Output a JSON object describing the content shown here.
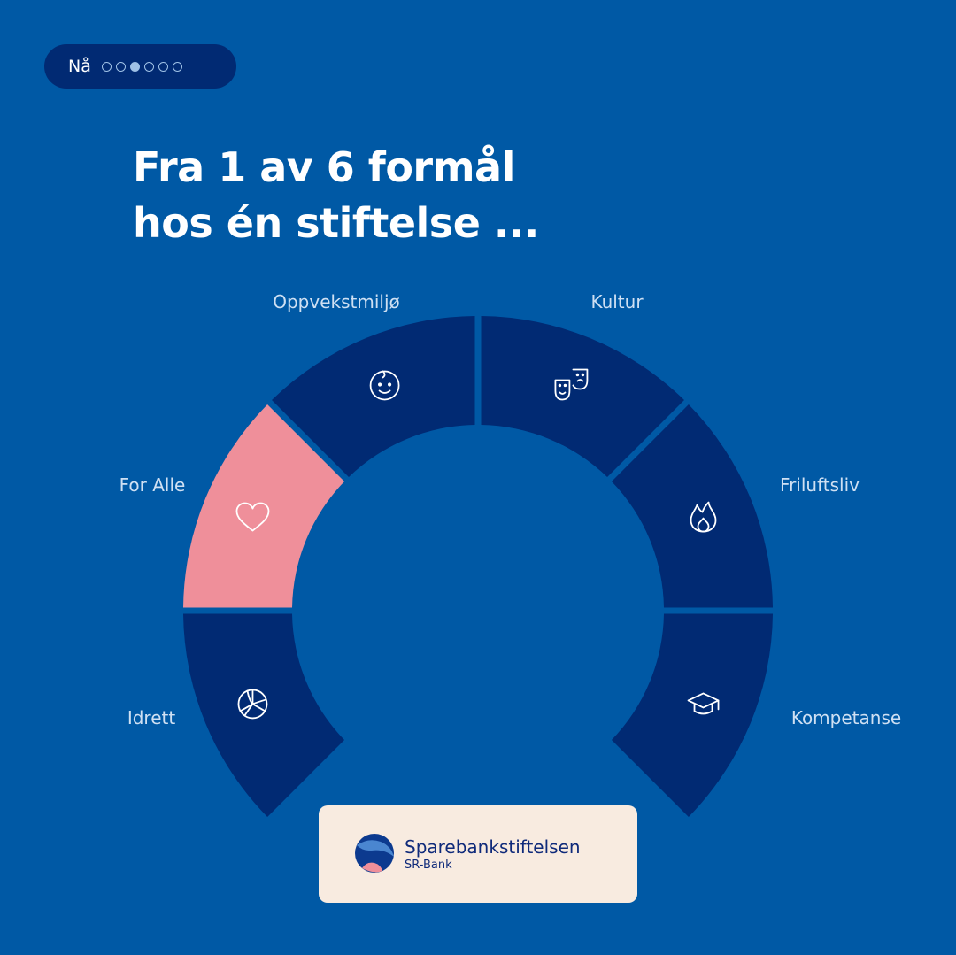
{
  "header": {
    "label": "Nå",
    "dots_total": 6,
    "dots_active_index": 2
  },
  "title": {
    "line1": "Fra 1 av 6 formål",
    "line2": "hos én stiftelse ..."
  },
  "segments": [
    {
      "label": "Idrett",
      "icon": "volleyball-icon",
      "highlighted": false
    },
    {
      "label": "For Alle",
      "icon": "heart-icon",
      "highlighted": true
    },
    {
      "label": "Oppvekstmiljø",
      "icon": "baby-face-icon",
      "highlighted": false
    },
    {
      "label": "Kultur",
      "icon": "theater-masks-icon",
      "highlighted": false
    },
    {
      "label": "Friluftsliv",
      "icon": "flame-icon",
      "highlighted": false
    },
    {
      "label": "Kompetanse",
      "icon": "graduation-cap-icon",
      "highlighted": false
    }
  ],
  "colors": {
    "background": "#0059a5",
    "segment": "#012a73",
    "highlight": "#ef8f9a",
    "logo_bg": "#f8ebe0"
  },
  "logo": {
    "name": "Sparebankstiftelsen",
    "sub": "SR-Bank"
  }
}
